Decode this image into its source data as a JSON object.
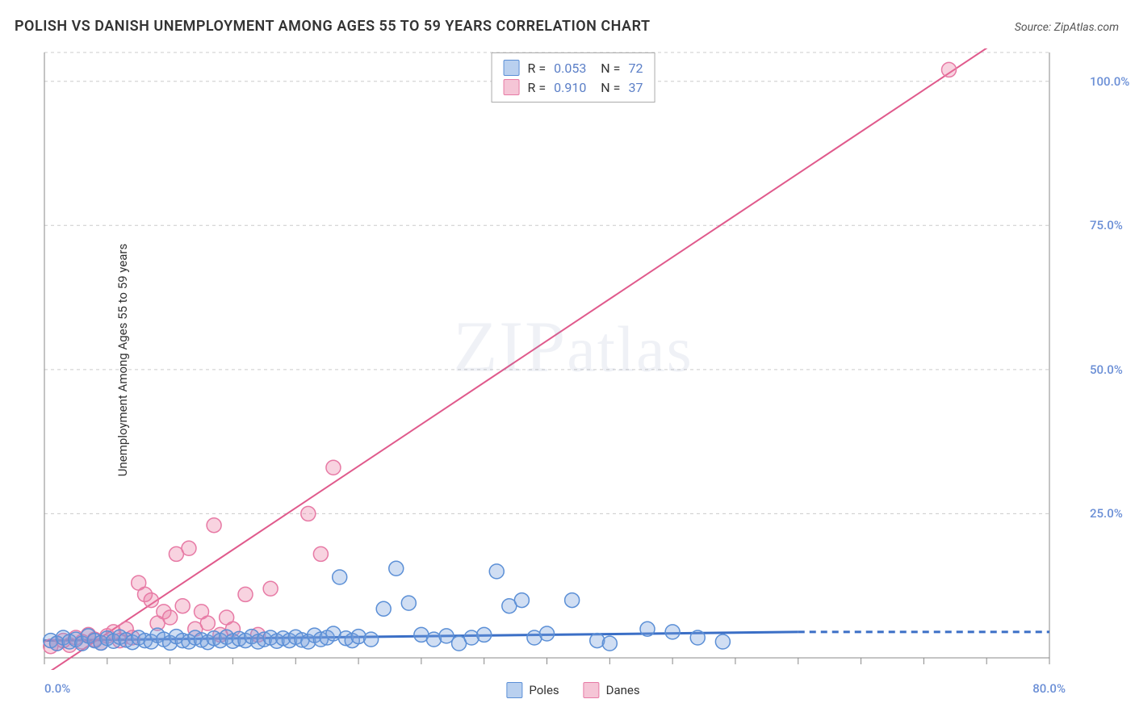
{
  "title": "POLISH VS DANISH UNEMPLOYMENT AMONG AGES 55 TO 59 YEARS CORRELATION CHART",
  "source": "Source: ZipAtlas.com",
  "y_axis_label": "Unemployment Among Ages 55 to 59 years",
  "watermark": "ZIPatlas",
  "chart": {
    "type": "scatter",
    "xlim": [
      0,
      80
    ],
    "ylim": [
      0,
      105
    ],
    "x_ticks_minor_step": 5,
    "x_tick_labels": [
      {
        "pos": 0,
        "label": "0.0%"
      },
      {
        "pos": 80,
        "label": "80.0%"
      }
    ],
    "y_grid": [
      25,
      50,
      75,
      100,
      105
    ],
    "y_tick_labels": [
      {
        "pos": 25,
        "label": "25.0%"
      },
      {
        "pos": 50,
        "label": "50.0%"
      },
      {
        "pos": 75,
        "label": "75.0%"
      },
      {
        "pos": 100,
        "label": "100.0%"
      }
    ],
    "series": [
      {
        "name": "Poles",
        "color_fill": "rgba(120,160,220,0.35)",
        "color_stroke": "#5b8fd6",
        "swatch_fill": "#b9d0ef",
        "swatch_border": "#5b8fd6",
        "marker_r": 9,
        "stats": {
          "R": "0.053",
          "N": "72"
        },
        "regression": {
          "x1": 0,
          "y1": 3.0,
          "x2": 60,
          "y2": 4.5,
          "dash_from_x": 60,
          "dash_to_x": 80,
          "dash_y": 4.5,
          "stroke": "#3b6fc6",
          "width": 3
        },
        "points": [
          [
            0.5,
            3
          ],
          [
            1,
            2.5
          ],
          [
            1.5,
            3.5
          ],
          [
            2,
            2.8
          ],
          [
            2.5,
            3.2
          ],
          [
            3,
            2.5
          ],
          [
            3.5,
            3.8
          ],
          [
            4,
            3
          ],
          [
            4.5,
            2.6
          ],
          [
            5,
            3.4
          ],
          [
            5.5,
            2.9
          ],
          [
            6,
            3.6
          ],
          [
            6.5,
            3.1
          ],
          [
            7,
            2.7
          ],
          [
            7.5,
            3.5
          ],
          [
            8,
            3
          ],
          [
            8.5,
            2.8
          ],
          [
            9,
            3.9
          ],
          [
            9.5,
            3.2
          ],
          [
            10,
            2.6
          ],
          [
            10.5,
            3.7
          ],
          [
            11,
            3
          ],
          [
            11.5,
            2.8
          ],
          [
            12,
            3.5
          ],
          [
            12.5,
            3.1
          ],
          [
            13,
            2.7
          ],
          [
            13.5,
            3.4
          ],
          [
            14,
            3
          ],
          [
            14.5,
            3.6
          ],
          [
            15,
            2.9
          ],
          [
            15.5,
            3.3
          ],
          [
            16,
            3
          ],
          [
            16.5,
            3.7
          ],
          [
            17,
            2.8
          ],
          [
            17.5,
            3.2
          ],
          [
            18,
            3.5
          ],
          [
            18.5,
            2.9
          ],
          [
            19,
            3.4
          ],
          [
            19.5,
            3
          ],
          [
            20,
            3.6
          ],
          [
            20.5,
            3.1
          ],
          [
            21,
            2.8
          ],
          [
            21.5,
            3.9
          ],
          [
            22,
            3.2
          ],
          [
            22.5,
            3.5
          ],
          [
            23,
            4.2
          ],
          [
            23.5,
            14
          ],
          [
            24,
            3.4
          ],
          [
            24.5,
            3
          ],
          [
            25,
            3.7
          ],
          [
            26,
            3.2
          ],
          [
            27,
            8.5
          ],
          [
            28,
            15.5
          ],
          [
            29,
            9.5
          ],
          [
            30,
            4
          ],
          [
            31,
            3.2
          ],
          [
            32,
            3.8
          ],
          [
            33,
            2.5
          ],
          [
            34,
            3.5
          ],
          [
            35,
            4
          ],
          [
            36,
            15
          ],
          [
            37,
            9
          ],
          [
            38,
            10
          ],
          [
            39,
            3.5
          ],
          [
            40,
            4.2
          ],
          [
            42,
            10
          ],
          [
            44,
            3
          ],
          [
            45,
            2.5
          ],
          [
            48,
            5
          ],
          [
            50,
            4.5
          ],
          [
            52,
            3.5
          ],
          [
            54,
            2.8
          ]
        ]
      },
      {
        "name": "Danes",
        "color_fill": "rgba(235,130,165,0.35)",
        "color_stroke": "#e77aa5",
        "swatch_fill": "#f5c5d6",
        "swatch_border": "#e77aa5",
        "marker_r": 9,
        "stats": {
          "R": "0.910",
          "N": "37"
        },
        "regression": {
          "x1": 0,
          "y1": -3,
          "x2": 80,
          "y2": 113,
          "stroke": "#e05a8c",
          "width": 2
        },
        "points": [
          [
            0.5,
            2
          ],
          [
            1,
            2.5
          ],
          [
            1.5,
            3
          ],
          [
            2,
            2.2
          ],
          [
            2.5,
            3.5
          ],
          [
            3,
            2.8
          ],
          [
            3.5,
            4
          ],
          [
            4,
            3.2
          ],
          [
            4.5,
            2.6
          ],
          [
            5,
            3.8
          ],
          [
            5.5,
            4.5
          ],
          [
            6,
            3
          ],
          [
            6.5,
            5
          ],
          [
            7,
            3.5
          ],
          [
            7.5,
            13
          ],
          [
            8,
            11
          ],
          [
            8.5,
            10
          ],
          [
            9,
            6
          ],
          [
            9.5,
            8
          ],
          [
            10,
            7
          ],
          [
            10.5,
            18
          ],
          [
            11,
            9
          ],
          [
            11.5,
            19
          ],
          [
            12,
            5
          ],
          [
            12.5,
            8
          ],
          [
            13,
            6
          ],
          [
            13.5,
            23
          ],
          [
            14,
            4
          ],
          [
            14.5,
            7
          ],
          [
            15,
            5
          ],
          [
            16,
            11
          ],
          [
            17,
            4
          ],
          [
            18,
            12
          ],
          [
            21,
            25
          ],
          [
            22,
            18
          ],
          [
            23,
            33
          ],
          [
            72,
            102
          ]
        ]
      }
    ],
    "legend_bottom": [
      {
        "label": "Poles",
        "fill": "#b9d0ef",
        "border": "#5b8fd6"
      },
      {
        "label": "Danes",
        "fill": "#f5c5d6",
        "border": "#e77aa5"
      }
    ]
  }
}
